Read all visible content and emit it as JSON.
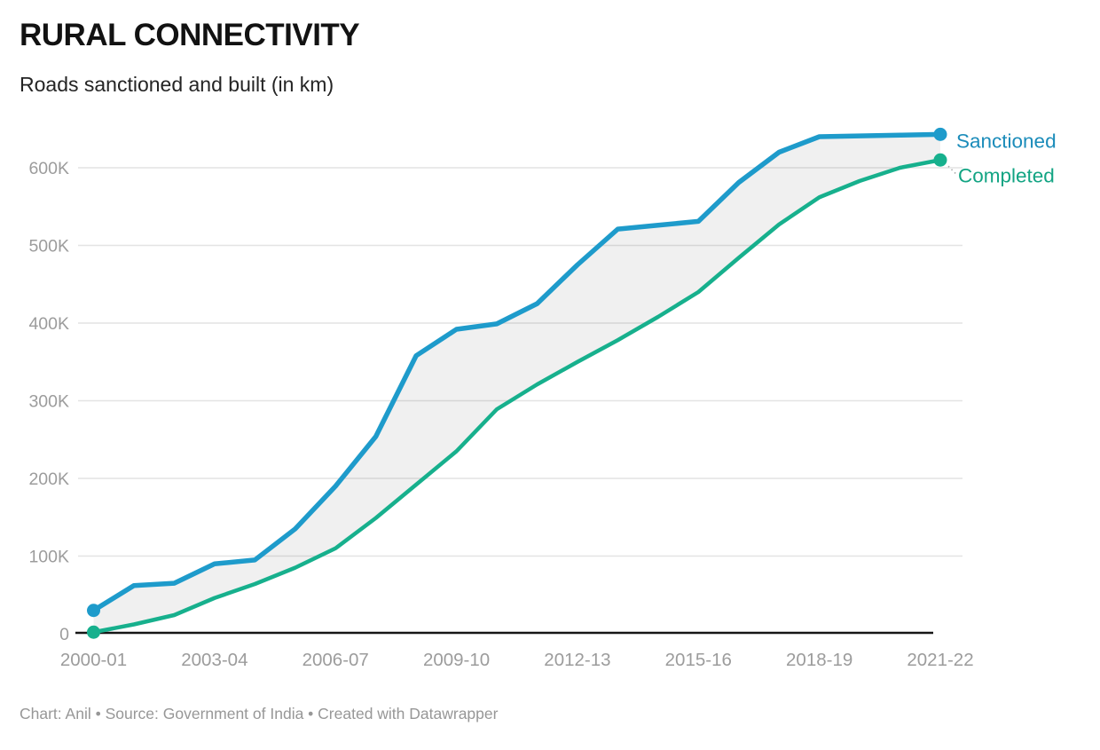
{
  "header": {
    "title": "RURAL CONNECTIVITY",
    "subtitle": "Roads sanctioned and built (in km)"
  },
  "footer": {
    "text": "Chart: Anil • Source: Government of India • Created with Datawrapper"
  },
  "chart_data": {
    "type": "area",
    "title": "RURAL CONNECTIVITY",
    "subtitle": "Roads sanctioned and built (in km)",
    "unit": "km",
    "x": [
      "2000-01",
      "2001-02",
      "2002-03",
      "2003-04",
      "2004-05",
      "2005-06",
      "2006-07",
      "2007-08",
      "2008-09",
      "2009-10",
      "2010-11",
      "2011-12",
      "2012-13",
      "2013-14",
      "2014-15",
      "2015-16",
      "2016-17",
      "2017-18",
      "2018-19",
      "2019-20",
      "2020-21",
      "2021-22"
    ],
    "x_tick_labels": [
      "2000-01",
      "2003-04",
      "2006-07",
      "2009-10",
      "2012-13",
      "2015-16",
      "2018-19",
      "2021-22"
    ],
    "y_tick_values": [
      0,
      100000,
      200000,
      300000,
      400000,
      500000,
      600000
    ],
    "y_tick_labels": [
      "0",
      "100K",
      "200K",
      "300K",
      "400K",
      "500K",
      "600K"
    ],
    "ylim": [
      0,
      660000
    ],
    "grid": "horizontal",
    "legend_position": "line-end-right",
    "series": [
      {
        "name": "Sanctioned",
        "color": "#1e9bcb",
        "label_color": "#1b8cba",
        "values": [
          30000,
          62000,
          65000,
          90000,
          95000,
          135000,
          190000,
          254000,
          358000,
          392000,
          399000,
          425000,
          475000,
          521000,
          526000,
          531000,
          581000,
          620000,
          640000,
          641000,
          642000,
          643000
        ]
      },
      {
        "name": "Completed",
        "color": "#17b08d",
        "label_color": "#12a483",
        "values": [
          2000,
          12000,
          24000,
          46000,
          64000,
          85000,
          110000,
          149000,
          192000,
          235000,
          289000,
          321000,
          350000,
          378000,
          408000,
          440000,
          484000,
          527000,
          562000,
          583000,
          600000,
          610000
        ]
      }
    ],
    "band_fill": "rgba(0,0,0,0.06)",
    "colors": {
      "grid_line": "#e4e4e4",
      "axis_line": "#161616",
      "tick_text": "#9c9c9c"
    }
  }
}
